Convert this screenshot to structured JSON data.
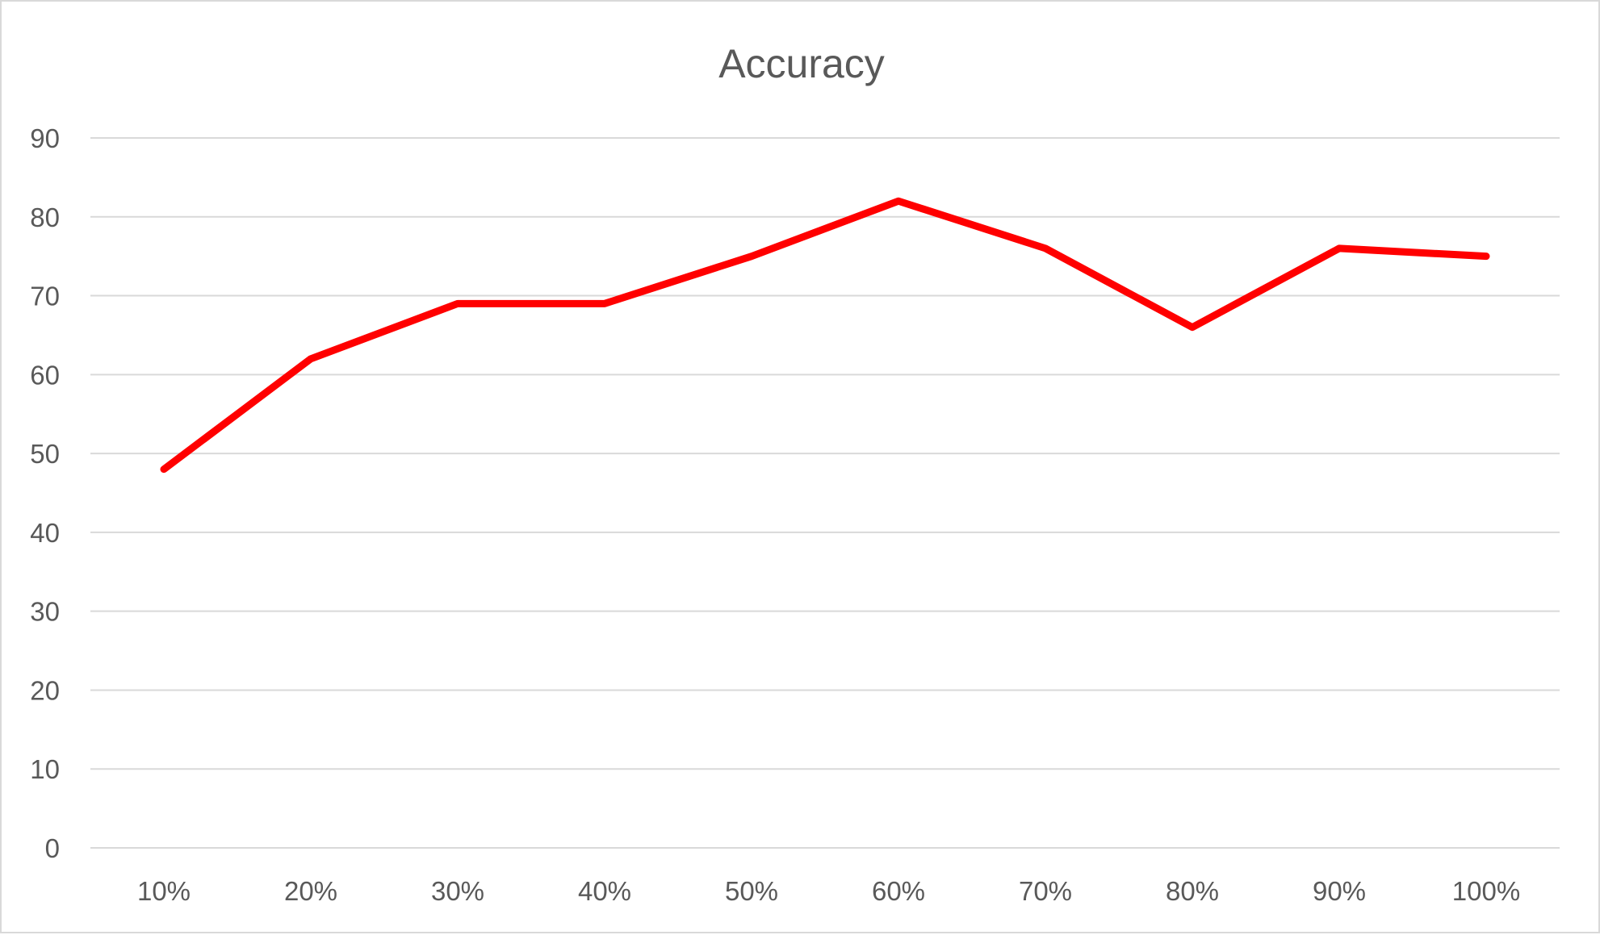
{
  "chart_data": {
    "type": "line",
    "title": "Accuracy",
    "xlabel": "",
    "ylabel": "",
    "categories": [
      "10%",
      "20%",
      "30%",
      "40%",
      "50%",
      "60%",
      "70%",
      "80%",
      "90%",
      "100%"
    ],
    "series": [
      {
        "values": [
          48,
          62,
          69,
          69,
          75,
          82,
          76,
          66,
          76,
          75
        ],
        "color": "#ff0000"
      }
    ],
    "ylim": [
      0,
      90
    ],
    "yticks": [
      0,
      10,
      20,
      30,
      40,
      50,
      60,
      70,
      80,
      90
    ],
    "grid": true,
    "legend": "none"
  }
}
